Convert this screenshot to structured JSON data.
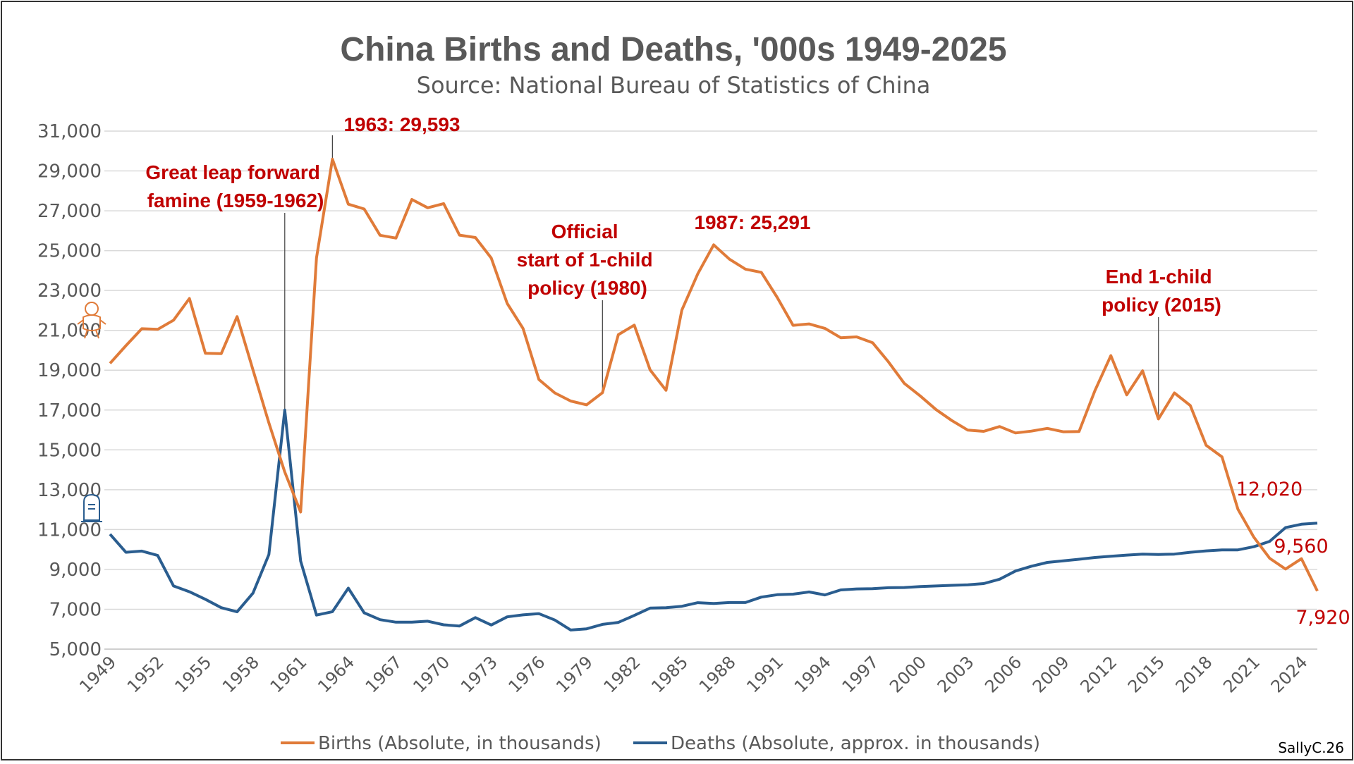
{
  "chart_data": {
    "type": "line",
    "title": "China Births and Deaths, '000s 1949-2025",
    "subtitle": "Source: National Bureau of Statistics of China",
    "ylim": [
      5000,
      31000
    ],
    "yticks": [
      "5,000",
      "7,000",
      "9,000",
      "11,000",
      "13,000",
      "15,000",
      "17,000",
      "19,000",
      "21,000",
      "23,000",
      "25,000",
      "27,000",
      "29,000",
      "31,000"
    ],
    "ytick_values": [
      5000,
      7000,
      9000,
      11000,
      13000,
      15000,
      17000,
      19000,
      21000,
      23000,
      25000,
      27000,
      29000,
      31000
    ],
    "xlim": [
      1949,
      2025
    ],
    "xticks": [
      "1949",
      "1952",
      "1955",
      "1958",
      "1961",
      "1964",
      "1967",
      "1970",
      "1973",
      "1976",
      "1979",
      "1982",
      "1985",
      "1988",
      "1991",
      "1994",
      "1997",
      "2000",
      "2003",
      "2006",
      "2009",
      "2012",
      "2015",
      "2018",
      "2021",
      "2024"
    ],
    "xtick_values": [
      1949,
      1952,
      1955,
      1958,
      1961,
      1964,
      1967,
      1970,
      1973,
      1976,
      1979,
      1982,
      1985,
      1988,
      1991,
      1994,
      1997,
      2000,
      2003,
      2006,
      2009,
      2012,
      2015,
      2018,
      2021,
      2024
    ],
    "x": [
      1949,
      1950,
      1951,
      1952,
      1953,
      1954,
      1955,
      1956,
      1957,
      1958,
      1959,
      1960,
      1961,
      1962,
      1963,
      1964,
      1965,
      1966,
      1967,
      1968,
      1969,
      1970,
      1971,
      1972,
      1973,
      1974,
      1975,
      1976,
      1977,
      1978,
      1979,
      1980,
      1981,
      1982,
      1983,
      1984,
      1985,
      1986,
      1987,
      1988,
      1989,
      1990,
      1991,
      1992,
      1993,
      1994,
      1995,
      1996,
      1997,
      1998,
      1999,
      2000,
      2001,
      2002,
      2003,
      2004,
      2005,
      2006,
      2007,
      2008,
      2009,
      2010,
      2011,
      2012,
      2013,
      2014,
      2015,
      2016,
      2017,
      2018,
      2019,
      2020,
      2021,
      2022,
      2023,
      2024,
      2025
    ],
    "series": [
      {
        "name": "Births (Absolute, in thousands)",
        "color": "#e07b39",
        "values": [
          19340,
          20230,
          21080,
          21050,
          21510,
          22600,
          19850,
          19830,
          21690,
          19020,
          16350,
          13890,
          11880,
          24640,
          29593,
          27330,
          27090,
          25770,
          25630,
          27570,
          27150,
          27360,
          25780,
          25660,
          24630,
          22350,
          21090,
          18530,
          17860,
          17450,
          17260,
          17870,
          20780,
          21260,
          19010,
          17990,
          22020,
          23840,
          25291,
          24570,
          24070,
          23910,
          22650,
          21250,
          21320,
          21100,
          20630,
          20670,
          20380,
          19420,
          18340,
          17710,
          17020,
          16470,
          15990,
          15930,
          16170,
          15850,
          15940,
          16080,
          15910,
          15920,
          17970,
          19730,
          17760,
          18970,
          16550,
          17860,
          17230,
          15230,
          14650,
          12020,
          10620,
          9560,
          9020,
          9540,
          7920
        ]
      },
      {
        "name": "Deaths (Absolute, approx. in thousands)",
        "color": "#2a5d8f",
        "values": [
          10770,
          9860,
          9920,
          9700,
          8170,
          7880,
          7500,
          7080,
          6870,
          7810,
          9750,
          17000,
          9420,
          6710,
          6880,
          8060,
          6820,
          6480,
          6350,
          6350,
          6400,
          6220,
          6160,
          6580,
          6210,
          6620,
          6720,
          6780,
          6460,
          5960,
          6020,
          6240,
          6340,
          6690,
          7060,
          7080,
          7150,
          7330,
          7290,
          7340,
          7340,
          7610,
          7730,
          7760,
          7870,
          7720,
          7970,
          8020,
          8030,
          8080,
          8090,
          8140,
          8170,
          8200,
          8230,
          8290,
          8510,
          8920,
          9160,
          9350,
          9430,
          9510,
          9600,
          9660,
          9720,
          9770,
          9750,
          9770,
          9860,
          9930,
          9980,
          9980,
          10140,
          10410,
          11100,
          11270,
          11320
        ]
      }
    ],
    "annotations": [
      {
        "lines": [
          "1963: 29,593"
        ],
        "year": 1963,
        "value": 29593
      },
      {
        "lines": [
          "Great leap forward",
          "famine (1959-1962)"
        ],
        "year": 1960,
        "value": 17000
      },
      {
        "lines": [
          "Official",
          "start of 1-child",
          "policy (1980)"
        ],
        "year": 1980,
        "value": 17870
      },
      {
        "lines": [
          "1987: 25,291"
        ],
        "year": 1987,
        "value": 25291
      },
      {
        "lines": [
          "End 1-child",
          "policy (2015)"
        ],
        "year": 2015,
        "value": 16550
      }
    ],
    "end_labels": [
      "12,020",
      "9,560",
      "7,920"
    ],
    "legend": [
      "Births (Absolute, in thousands)",
      "Deaths (Absolute, approx. in thousands)"
    ],
    "legend_position": "bottom",
    "grid": true
  },
  "credit": "SallyC.26"
}
